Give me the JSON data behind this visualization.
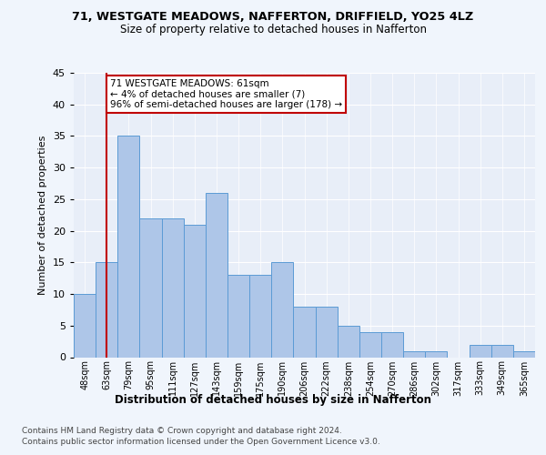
{
  "title1": "71, WESTGATE MEADOWS, NAFFERTON, DRIFFIELD, YO25 4LZ",
  "title2": "Size of property relative to detached houses in Nafferton",
  "xlabel": "Distribution of detached houses by size in Nafferton",
  "ylabel": "Number of detached properties",
  "bins": [
    "48sqm",
    "63sqm",
    "79sqm",
    "95sqm",
    "111sqm",
    "127sqm",
    "143sqm",
    "159sqm",
    "175sqm",
    "190sqm",
    "206sqm",
    "222sqm",
    "238sqm",
    "254sqm",
    "270sqm",
    "286sqm",
    "302sqm",
    "317sqm",
    "333sqm",
    "349sqm",
    "365sqm"
  ],
  "values": [
    10,
    15,
    35,
    22,
    22,
    21,
    26,
    13,
    13,
    15,
    8,
    8,
    5,
    4,
    4,
    1,
    1,
    0,
    2,
    2,
    1
  ],
  "bar_color": "#aec6e8",
  "bar_edge_color": "#5b9bd5",
  "vline_color": "#c00000",
  "annotation_text": "71 WESTGATE MEADOWS: 61sqm\n← 4% of detached houses are smaller (7)\n96% of semi-detached houses are larger (178) →",
  "ylim": [
    0,
    45
  ],
  "yticks": [
    0,
    5,
    10,
    15,
    20,
    25,
    30,
    35,
    40,
    45
  ],
  "footer1": "Contains HM Land Registry data © Crown copyright and database right 2024.",
  "footer2": "Contains public sector information licensed under the Open Government Licence v3.0.",
  "fig_bg": "#f0f5fc",
  "plot_bg": "#e8eef8"
}
